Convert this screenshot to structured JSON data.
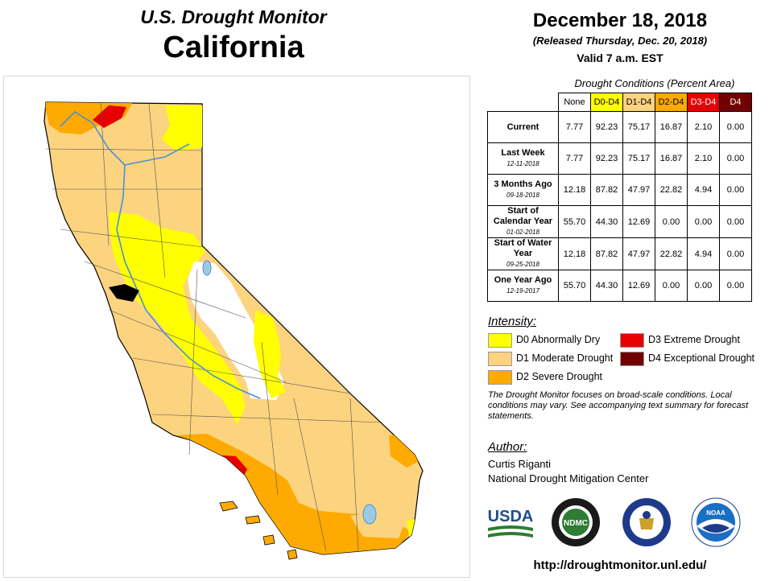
{
  "header": {
    "title": "U.S. Drought Monitor",
    "state": "California",
    "date": "December 18, 2018",
    "released": "(Released Thursday, Dec. 20, 2018)",
    "valid": "Valid 7 a.m. EST"
  },
  "conditions": {
    "title": "Drought Conditions (Percent Area)",
    "columns": [
      {
        "label": "None",
        "color": "#ffffff",
        "text": "#000000"
      },
      {
        "label": "D0-D4",
        "color": "#ffff00",
        "text": "#000000"
      },
      {
        "label": "D1-D4",
        "color": "#fcd37f",
        "text": "#000000"
      },
      {
        "label": "D2-D4",
        "color": "#ffaa00",
        "text": "#000000"
      },
      {
        "label": "D3-D4",
        "color": "#e60000",
        "text": "#ffffff"
      },
      {
        "label": "D4",
        "color": "#730000",
        "text": "#ffffff"
      }
    ],
    "rows": [
      {
        "label": "Current",
        "date": "",
        "values": [
          "7.77",
          "92.23",
          "75.17",
          "16.87",
          "2.10",
          "0.00"
        ]
      },
      {
        "label": "Last Week",
        "date": "12-11-2018",
        "values": [
          "7.77",
          "92.23",
          "75.17",
          "16.87",
          "2.10",
          "0.00"
        ]
      },
      {
        "label": "3 Months Ago",
        "date": "09-18-2018",
        "values": [
          "12.18",
          "87.82",
          "47.97",
          "22.82",
          "4.94",
          "0.00"
        ]
      },
      {
        "label": "Start of Calendar Year",
        "date": "01-02-2018",
        "values": [
          "55.70",
          "44.30",
          "12.69",
          "0.00",
          "0.00",
          "0.00"
        ]
      },
      {
        "label": "Start of Water Year",
        "date": "09-25-2018",
        "values": [
          "12.18",
          "87.82",
          "47.97",
          "22.82",
          "4.94",
          "0.00"
        ]
      },
      {
        "label": "One Year Ago",
        "date": "12-19-2017",
        "values": [
          "55.70",
          "44.30",
          "12.69",
          "0.00",
          "0.00",
          "0.00"
        ]
      }
    ]
  },
  "intensity": {
    "title": "Intensity:",
    "items": [
      {
        "label": "D0 Abnormally Dry",
        "color": "#ffff00"
      },
      {
        "label": "D1 Moderate Drought",
        "color": "#fcd37f"
      },
      {
        "label": "D2 Severe Drought",
        "color": "#ffaa00"
      },
      {
        "label": "D3 Extreme Drought",
        "color": "#e60000"
      },
      {
        "label": "D4 Exceptional Drought",
        "color": "#730000"
      }
    ]
  },
  "note": "The Drought Monitor focuses on broad-scale conditions. Local conditions may vary. See accompanying text summary for forecast statements.",
  "author": {
    "title": "Author:",
    "name": "Curtis Riganti",
    "org": "National Drought Mitigation Center"
  },
  "logos": {
    "usda": "USDA",
    "ndmc": "NDMC",
    "noaa": "NOAA"
  },
  "url": "http://droughtmonitor.unl.edu/",
  "map": {
    "legend_colors": {
      "none": "#ffffff",
      "d0": "#ffff00",
      "d1": "#fcd37f",
      "d2": "#ffaa00",
      "d3": "#e60000",
      "d4": "#730000",
      "water": "#9ecae1",
      "river": "#4a90d9"
    }
  }
}
